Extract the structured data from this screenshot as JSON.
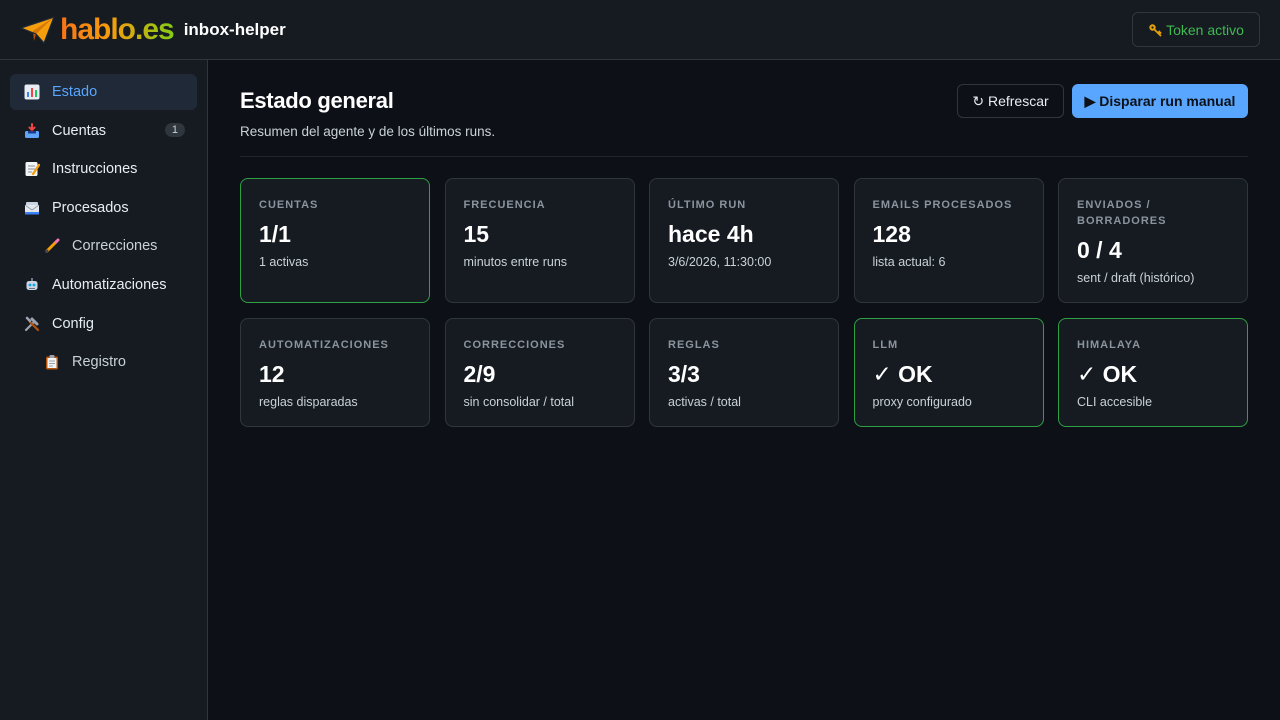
{
  "header": {
    "logo_text": "hablo.es",
    "app_name": "inbox-helper",
    "token_icon": "key-icon",
    "token_label": "Token activo"
  },
  "sidebar": {
    "items": [
      {
        "label": "Estado",
        "icon": "chart-icon",
        "active": true
      },
      {
        "label": "Cuentas",
        "icon": "inbox-icon",
        "badge": "1"
      },
      {
        "label": "Instrucciones",
        "icon": "memo-icon"
      },
      {
        "label": "Procesados",
        "icon": "envelope-stack-icon"
      },
      {
        "label": "Correcciones",
        "icon": "pencil-icon",
        "sub": true
      },
      {
        "label": "Automatizaciones",
        "icon": "robot-icon"
      },
      {
        "label": "Config",
        "icon": "tools-icon"
      },
      {
        "label": "Registro",
        "icon": "clipboard-icon",
        "sub": true
      }
    ]
  },
  "main": {
    "title": "Estado general",
    "subtitle": "Resumen del agente y de los últimos runs.",
    "refresh_label": "↻ Refrescar",
    "run_label": "▶ Disparar run manual"
  },
  "cards": [
    {
      "label": "CUENTAS",
      "value": "1/1",
      "sub": "1 activas",
      "ok": true
    },
    {
      "label": "FRECUENCIA",
      "value": "15",
      "sub": "minutos entre runs"
    },
    {
      "label": "ÚLTIMO RUN",
      "value": "hace 4h",
      "sub": "3/6/2026, 11:30:00"
    },
    {
      "label": "EMAILS PROCESADOS",
      "value": "128",
      "sub": "lista actual: 6"
    },
    {
      "label": "ENVIADOS / BORRADORES",
      "value": "0 / 4",
      "sub": "sent / draft (histórico)"
    },
    {
      "label": "AUTOMATIZACIONES",
      "value": "12",
      "sub": "reglas disparadas"
    },
    {
      "label": "CORRECCIONES",
      "value": "2/9",
      "sub": "sin consolidar / total"
    },
    {
      "label": "REGLAS",
      "value": "3/3",
      "sub": "activas / total"
    },
    {
      "label": "LLM",
      "value": "✓ OK",
      "sub": "proxy configurado",
      "ok": true
    },
    {
      "label": "HIMALAYA",
      "value": "✓ OK",
      "sub": "CLI accesible",
      "ok": true
    }
  ],
  "colors": {
    "accent": "#58a6ff",
    "ok": "#2ea043",
    "background": "#0d1117",
    "panel": "#161b22"
  }
}
